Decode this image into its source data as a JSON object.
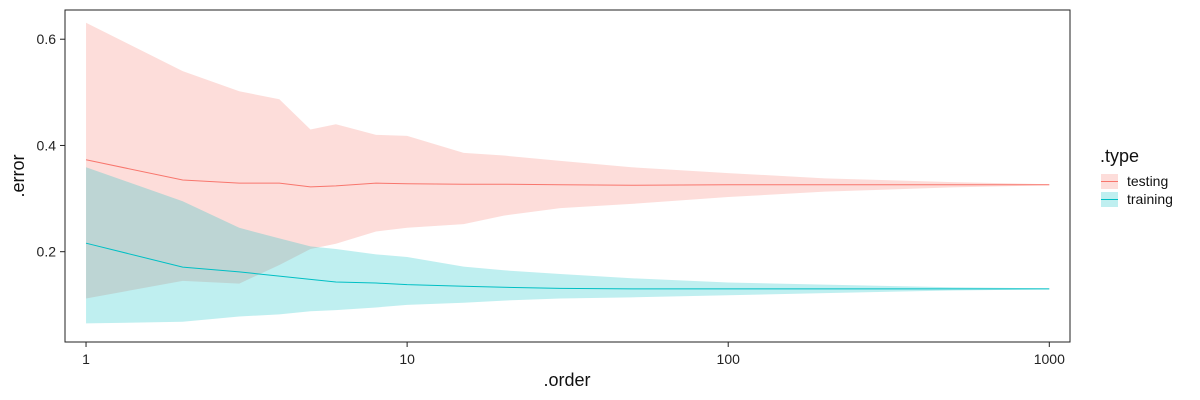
{
  "chart_data": {
    "type": "area",
    "xlabel": ".order",
    "ylabel": ".error",
    "x_scale": "log10",
    "xlim": [
      0.86,
      1160
    ],
    "ylim": [
      0.03,
      0.655
    ],
    "x_ticks": [
      {
        "value": 1,
        "label": "1"
      },
      {
        "value": 10,
        "label": "10"
      },
      {
        "value": 100,
        "label": "100"
      },
      {
        "value": 1000,
        "label": "1000"
      }
    ],
    "y_ticks": [
      {
        "value": 0.2,
        "label": "0.2"
      },
      {
        "value": 0.4,
        "label": "0.4"
      },
      {
        "value": 0.6,
        "label": "0.6"
      }
    ],
    "legend": {
      "title": ".type",
      "position": "right"
    },
    "grid": false,
    "series": [
      {
        "name": "testing",
        "color": "#F8766D",
        "fill": "#F8766D",
        "x": [
          1,
          2,
          3,
          4,
          5,
          6,
          8,
          10,
          15,
          20,
          30,
          50,
          100,
          200,
          500,
          1000
        ],
        "mean": [
          0.373,
          0.335,
          0.329,
          0.329,
          0.322,
          0.324,
          0.329,
          0.328,
          0.327,
          0.327,
          0.326,
          0.325,
          0.326,
          0.326,
          0.326,
          0.326
        ],
        "upper": [
          0.631,
          0.54,
          0.502,
          0.487,
          0.43,
          0.44,
          0.42,
          0.418,
          0.386,
          0.381,
          0.371,
          0.359,
          0.348,
          0.338,
          0.331,
          0.327
        ],
        "lower": [
          0.112,
          0.145,
          0.14,
          0.175,
          0.205,
          0.215,
          0.238,
          0.245,
          0.252,
          0.268,
          0.282,
          0.29,
          0.303,
          0.313,
          0.321,
          0.325
        ]
      },
      {
        "name": "training",
        "color": "#00BFC4",
        "fill": "#00BFC4",
        "x": [
          1,
          2,
          3,
          4,
          5,
          6,
          8,
          10,
          15,
          20,
          30,
          50,
          100,
          200,
          500,
          1000
        ],
        "mean": [
          0.216,
          0.171,
          0.162,
          0.154,
          0.148,
          0.143,
          0.141,
          0.138,
          0.135,
          0.133,
          0.131,
          0.13,
          0.13,
          0.13,
          0.13,
          0.13
        ],
        "upper": [
          0.359,
          0.295,
          0.245,
          0.225,
          0.21,
          0.205,
          0.195,
          0.19,
          0.172,
          0.165,
          0.158,
          0.15,
          0.142,
          0.138,
          0.133,
          0.131
        ],
        "lower": [
          0.065,
          0.068,
          0.078,
          0.082,
          0.088,
          0.09,
          0.095,
          0.1,
          0.104,
          0.108,
          0.112,
          0.114,
          0.118,
          0.122,
          0.127,
          0.129
        ]
      }
    ]
  }
}
